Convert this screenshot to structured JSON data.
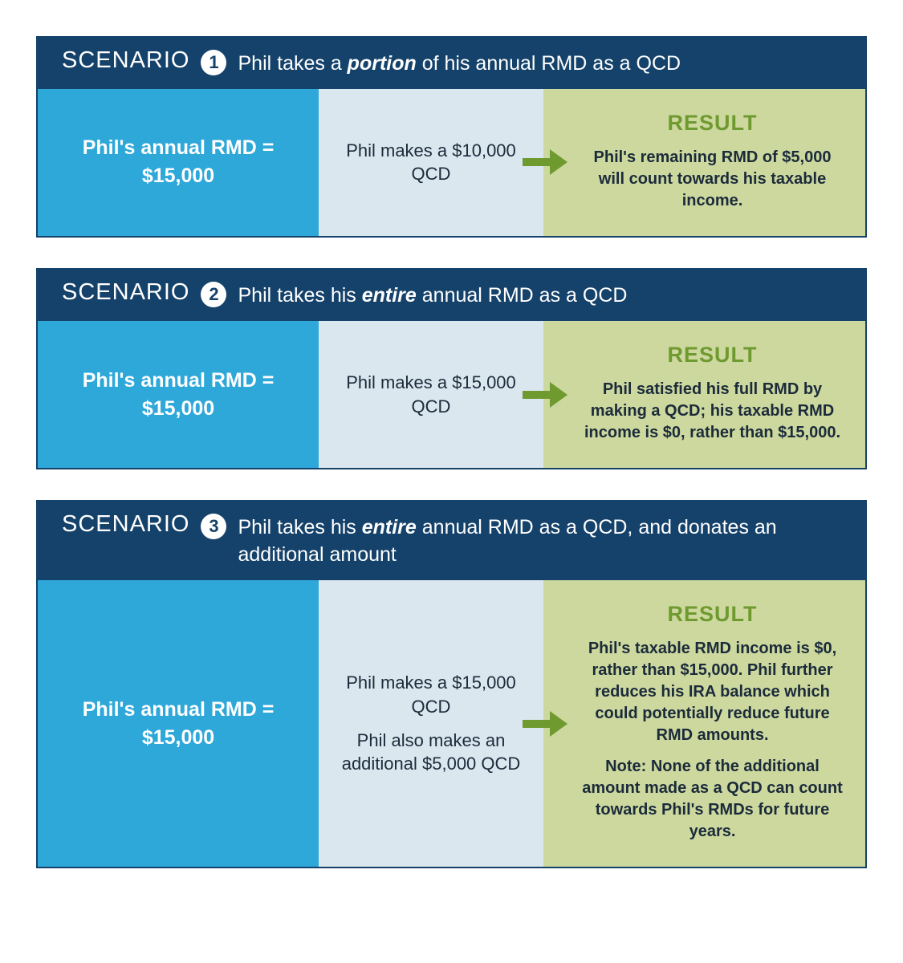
{
  "colors": {
    "header_bg": "#15426a",
    "left_bg": "#2ea7d9",
    "mid_bg": "#dbe7ef",
    "right_bg": "#cdd89f",
    "result_label": "#6e9a2f",
    "arrow": "#6e9a2f",
    "text_dark": "#1b2b3a",
    "text_light": "#ffffff"
  },
  "rmd": {
    "label_line1": "Phil's annual RMD =",
    "label_line2": "$15,000"
  },
  "result_label": "RESULT",
  "scenarios": [
    {
      "title": "SCENARIO",
      "number": "1",
      "desc_pre": "Phil takes a ",
      "desc_em": "portion",
      "desc_post": " of his annual RMD as a QCD",
      "mid_lines": [
        "Phil makes a $10,000 QCD"
      ],
      "result_paras": [
        "Phil's remaining RMD of $5,000 will count towards his taxable income."
      ]
    },
    {
      "title": "SCENARIO",
      "number": "2",
      "desc_pre": "Phil takes his ",
      "desc_em": "entire",
      "desc_post": " annual RMD as a QCD",
      "mid_lines": [
        "Phil makes a $15,000 QCD"
      ],
      "result_paras": [
        "Phil satisfied his full RMD by making a QCD; his taxable RMD income is $0, rather than $15,000."
      ]
    },
    {
      "title": "SCENARIO",
      "number": "3",
      "desc_pre": "Phil takes his ",
      "desc_em": "entire",
      "desc_post": " annual RMD as a QCD, and donates an additional amount",
      "mid_lines": [
        "Phil makes a $15,000 QCD",
        "Phil also makes an additional $5,000 QCD"
      ],
      "result_paras": [
        "Phil's taxable RMD income is $0, rather than $15,000. Phil further reduces his IRA balance which could potentially reduce future RMD amounts.",
        "Note: None of the additional amount made as a QCD can count towards Phil's RMDs for future years."
      ]
    }
  ]
}
